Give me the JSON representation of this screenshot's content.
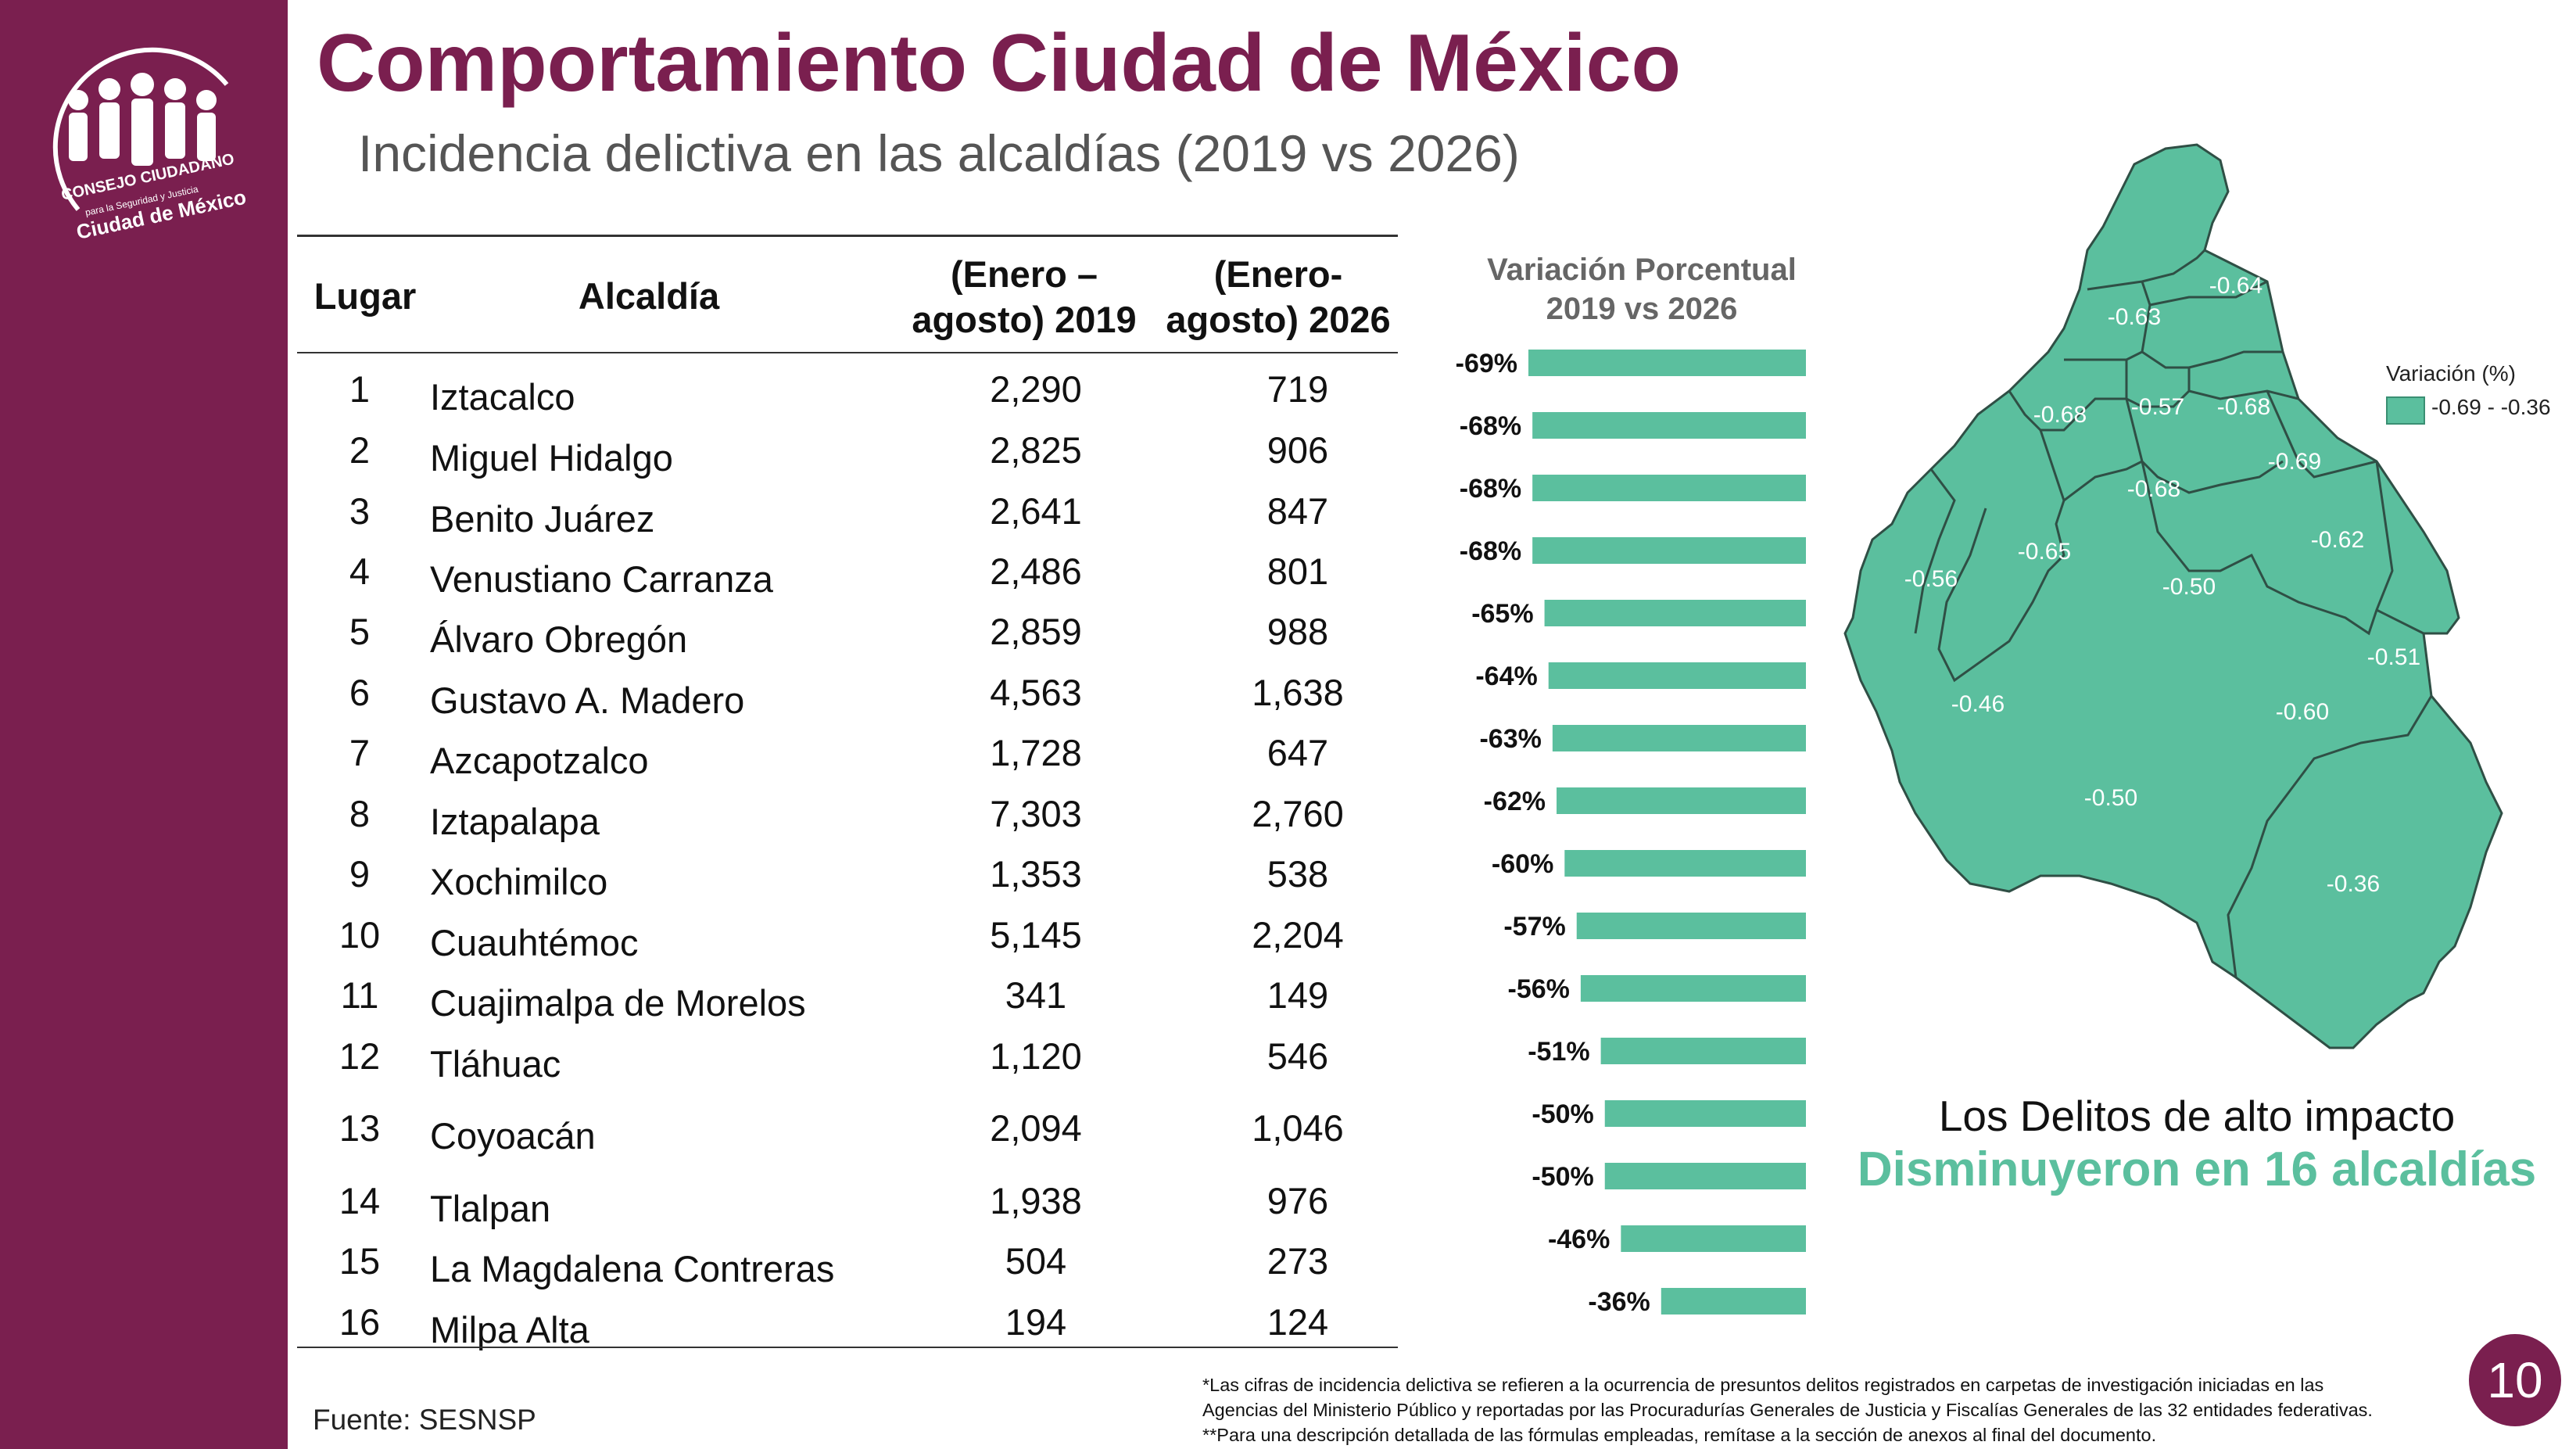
{
  "header": {
    "title": "Comportamiento Ciudad de México",
    "subtitle": "Incidencia delictiva en las alcaldías (2019 vs 2026)"
  },
  "logo": {
    "line1": "CONSEJO CIUDADANO",
    "line2": "para la Seguridad y Justicia",
    "line3": "Ciudad de México"
  },
  "table": {
    "headers": {
      "rank": "Lugar",
      "name": "Alcaldía",
      "y2019_a": "(Enero –",
      "y2019_b": "agosto) 2019",
      "y2026_a": "(Enero-",
      "y2026_b": "agosto) 2026"
    },
    "rows": [
      {
        "rank": "1",
        "name": "Iztacalco",
        "v2019": "2,290",
        "v2026": "719"
      },
      {
        "rank": "2",
        "name": "Miguel Hidalgo",
        "v2019": "2,825",
        "v2026": "906"
      },
      {
        "rank": "3",
        "name": "Benito Juárez",
        "v2019": "2,641",
        "v2026": "847"
      },
      {
        "rank": "4",
        "name": "Venustiano Carranza",
        "v2019": "2,486",
        "v2026": "801"
      },
      {
        "rank": "5",
        "name": "Álvaro Obregón",
        "v2019": "2,859",
        "v2026": "988"
      },
      {
        "rank": "6",
        "name": "Gustavo A. Madero",
        "v2019": "4,563",
        "v2026": "1,638"
      },
      {
        "rank": "7",
        "name": "Azcapotzalco",
        "v2019": "1,728",
        "v2026": "647"
      },
      {
        "rank": "8",
        "name": "Iztapalapa",
        "v2019": "7,303",
        "v2026": "2,760"
      },
      {
        "rank": "9",
        "name": "Xochimilco",
        "v2019": "1,353",
        "v2026": "538"
      },
      {
        "rank": "10",
        "name": "Cuauhtémoc",
        "v2019": "5,145",
        "v2026": "2,204"
      },
      {
        "rank": "11",
        "name": "Cuajimalpa de Morelos",
        "v2019": "341",
        "v2026": "149"
      },
      {
        "rank": "12",
        "name": "Tláhuac",
        "v2019": "1,120",
        "v2026": "546"
      },
      {
        "rank": "13",
        "name": "Coyoacán",
        "v2019": "2,094",
        "v2026": "1,046"
      },
      {
        "rank": "14",
        "name": "Tlalpan",
        "v2019": "1,938",
        "v2026": "976"
      },
      {
        "rank": "15",
        "name": "La Magdalena Contreras",
        "v2019": "504",
        "v2026": "273"
      },
      {
        "rank": "16",
        "name": "Milpa Alta",
        "v2019": "194",
        "v2026": "124"
      }
    ]
  },
  "chart_data": {
    "type": "bar",
    "title_line1": "Variación Porcentual",
    "title_line2": "2019 vs 2026",
    "values": [
      -69,
      -68,
      -68,
      -68,
      -65,
      -64,
      -63,
      -62,
      -60,
      -57,
      -56,
      -51,
      -50,
      -50,
      -46,
      -36
    ],
    "labels": [
      "-69%",
      "-68%",
      "-68%",
      "-68%",
      "-65%",
      "-64%",
      "-63%",
      "-62%",
      "-60%",
      "-57%",
      "-56%",
      "-51%",
      "-50%",
      "-50%",
      "-46%",
      "-36%"
    ],
    "xlim": [
      -69,
      0
    ],
    "bar_color": "#5bbf9e"
  },
  "map": {
    "fill_color": "#5bbf9e",
    "labels": [
      "-0.64",
      "-0.63",
      "-0.68",
      "-0.57",
      "-0.68",
      "-0.69",
      "-0.68",
      "-0.62",
      "-0.56",
      "-0.65",
      "-0.50",
      "-0.51",
      "-0.46",
      "-0.60",
      "-0.50",
      "-0.36"
    ],
    "legend_title": "Variación (%)",
    "legend_range": "-0.69 - -0.36"
  },
  "message": {
    "line1": "Los Delitos de alto impacto",
    "line2": "Disminuyeron en 16 alcaldías"
  },
  "footer": {
    "source": "Fuente: SESNSP",
    "note1": "*Las cifras de incidencia delictiva se refieren a la ocurrencia de presuntos delitos registrados en carpetas de investigación iniciadas en las",
    "note2": "Agencias del Ministerio Público y reportadas por las Procuradurías Generales de Justicia y Fiscalías Generales de las 32 entidades federativas.",
    "note3": "**Para una descripción detallada de las fórmulas empleadas, remítase a la sección de anexos al final del documento.",
    "page_number": "10"
  }
}
